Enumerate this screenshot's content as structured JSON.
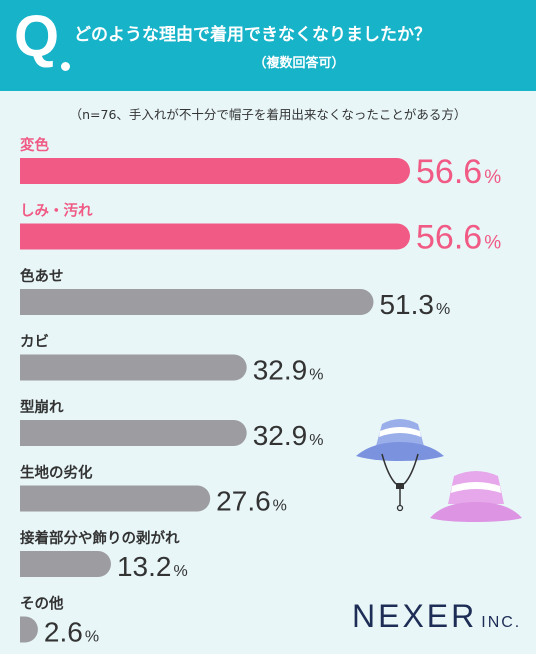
{
  "header": {
    "q_label": "Q",
    "question": "どのような理由で着用できなくなりましたか？",
    "subnote": "（複数回答可）"
  },
  "note": "（n=76、手入れが不十分で帽子を着用出来なくなったことがある方）",
  "logo": {
    "name": "NEXER",
    "suffix": "INC."
  },
  "colors": {
    "header_bg": "#17b3c9",
    "background": "#e8f6f8",
    "highlight": "#f05a84",
    "neutral": "#9c9ca1"
  },
  "icons": [
    "blue-bucket-hat-icon",
    "pink-bucket-hat-icon"
  ],
  "chart_data": {
    "type": "bar",
    "orientation": "horizontal",
    "unit": "%",
    "xlim": [
      0,
      100
    ],
    "categories": [
      "変色",
      "しみ・汚れ",
      "色あせ",
      "カビ",
      "型崩れ",
      "生地の劣化",
      "接着部分や飾りの剥がれ",
      "その他"
    ],
    "values": [
      56.6,
      56.6,
      51.3,
      32.9,
      32.9,
      27.6,
      13.2,
      2.6
    ],
    "highlighted": [
      true,
      true,
      false,
      false,
      false,
      false,
      false,
      false
    ],
    "grid": false,
    "legend": "none"
  }
}
